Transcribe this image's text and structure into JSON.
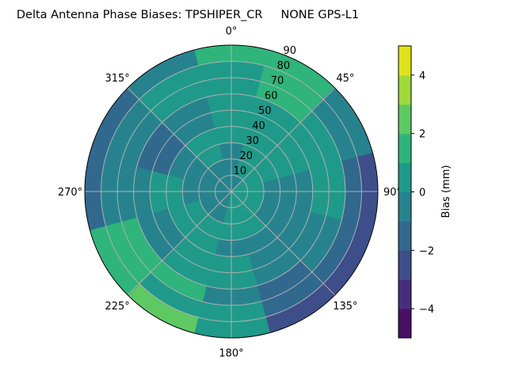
{
  "chart_data": {
    "type": "heatmap",
    "projection": "polar",
    "title": "Delta Antenna Phase Biases: TPSHIPER_CR     NONE GPS-L1",
    "theta_direction": "clockwise",
    "theta_zero": "top",
    "theta_ticks": [
      "0°",
      "45°",
      "90°",
      "135°",
      "180°",
      "225°",
      "270°",
      "315°"
    ],
    "radial_ticks": [
      "10",
      "20",
      "30",
      "40",
      "50",
      "60",
      "70",
      "80",
      "90"
    ],
    "rlim": [
      0,
      90
    ],
    "grid": true,
    "azimuths": [
      0,
      30,
      60,
      90,
      120,
      150,
      180,
      210,
      240,
      270,
      300,
      330
    ],
    "radii": [
      5,
      15,
      25,
      35,
      45,
      55,
      65,
      75,
      85
    ],
    "values": [
      [
        -0.5,
        -0.5,
        -0.5,
        0.5,
        0.5,
        0.5,
        0.5,
        0.5,
        1.5
      ],
      [
        -0.5,
        0.5,
        0.5,
        0.5,
        0.5,
        0.5,
        1.5,
        1.5,
        1.5
      ],
      [
        0.5,
        0.5,
        0.5,
        0.5,
        0.5,
        0.5,
        0.5,
        -0.5,
        -0.5
      ],
      [
        0.5,
        0.5,
        -0.5,
        -0.5,
        -0.5,
        0.5,
        0.5,
        -1.5,
        -2.5
      ],
      [
        0.5,
        0.5,
        -0.5,
        -0.5,
        -0.5,
        -0.5,
        -0.5,
        -1.5,
        -2.5
      ],
      [
        0.5,
        0.5,
        0.5,
        -0.5,
        -0.5,
        -0.5,
        -1.5,
        -1.5,
        -2.5
      ],
      [
        0.5,
        0.5,
        0.5,
        -0.5,
        0.5,
        0.5,
        -0.5,
        0.5,
        0.5
      ],
      [
        -0.5,
        -0.5,
        0.5,
        0.5,
        0.5,
        0.5,
        1.5,
        0.5,
        2.5
      ],
      [
        -0.5,
        -0.5,
        0.5,
        0.5,
        -0.5,
        -0.5,
        1.5,
        1.5,
        1.5
      ],
      [
        -0.5,
        -0.5,
        -0.5,
        0.5,
        0.5,
        -0.5,
        -0.5,
        -0.5,
        -1.5
      ],
      [
        -0.5,
        -0.5,
        -0.5,
        -0.5,
        -1.5,
        -1.5,
        -0.5,
        -0.5,
        -1.5
      ],
      [
        -0.5,
        -0.5,
        0.5,
        0.5,
        -0.5,
        -0.5,
        0.5,
        0.5,
        -0.5
      ]
    ],
    "colorbar": {
      "label": "Bias (mm)",
      "levels": [
        -5,
        -4,
        -3,
        -2,
        -1,
        0,
        1,
        2,
        3,
        4,
        5
      ],
      "ticks": [
        -4,
        -2,
        0,
        2,
        4
      ],
      "tick_labels": [
        "−4",
        "−2",
        "0",
        "2",
        "4"
      ],
      "colors": [
        "#471164",
        "#472e7c",
        "#3d4e8a",
        "#31688e",
        "#26838e",
        "#1f9a8a",
        "#2fb47c",
        "#5ec962",
        "#9fda3a",
        "#e0e31b"
      ]
    },
    "grid_color": "#b0b0b0"
  }
}
